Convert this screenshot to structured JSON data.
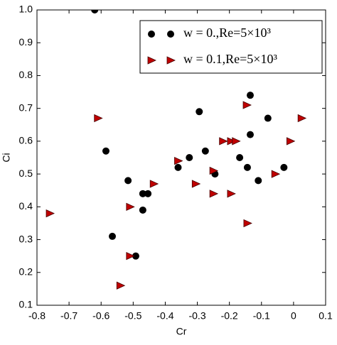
{
  "chart_data": {
    "type": "scatter",
    "xlabel": "Cr",
    "ylabel": "Ci",
    "xlim": [
      -0.8,
      0.1
    ],
    "ylim": [
      0.1,
      1.0
    ],
    "xticks": [
      -0.8,
      -0.7,
      -0.6,
      -0.5,
      -0.4,
      -0.3,
      -0.2,
      -0.1,
      0,
      0.1
    ],
    "yticks": [
      0.1,
      0.2,
      0.3,
      0.4,
      0.5,
      0.6,
      0.7,
      0.8,
      0.9,
      {
        "value": 1.0,
        "label": "1.0"
      }
    ],
    "grid": false,
    "legend": "upper right",
    "series": [
      {
        "name": "w = 0.,Re=5×10³",
        "color": "#000000",
        "marker": "circle",
        "x": [
          -0.62,
          -0.585,
          -0.565,
          -0.516,
          -0.492,
          -0.47,
          -0.454,
          -0.47,
          -0.36,
          -0.325,
          -0.294,
          -0.275,
          -0.245,
          -0.168,
          -0.144,
          -0.135,
          -0.135,
          -0.11,
          -0.08,
          -0.03
        ],
        "values": [
          1.0,
          0.57,
          0.31,
          0.48,
          0.25,
          0.44,
          0.44,
          0.39,
          0.52,
          0.55,
          0.69,
          0.57,
          0.5,
          0.55,
          0.52,
          0.62,
          0.74,
          0.48,
          0.67,
          0.52
        ]
      },
      {
        "name": "w = 0.1,Re=5×10³",
        "color": "#c00000",
        "marker": "triangle-right",
        "x": [
          -0.76,
          -0.61,
          -0.54,
          -0.51,
          -0.51,
          -0.436,
          -0.36,
          -0.305,
          -0.25,
          -0.25,
          -0.22,
          -0.195,
          -0.18,
          -0.195,
          -0.146,
          -0.144,
          -0.057,
          -0.01,
          0.025
        ],
        "values": [
          0.38,
          0.67,
          0.16,
          0.25,
          0.4,
          0.47,
          0.54,
          0.47,
          0.51,
          0.44,
          0.6,
          0.6,
          0.6,
          0.44,
          0.71,
          0.35,
          0.5,
          0.6,
          0.67
        ]
      }
    ]
  }
}
